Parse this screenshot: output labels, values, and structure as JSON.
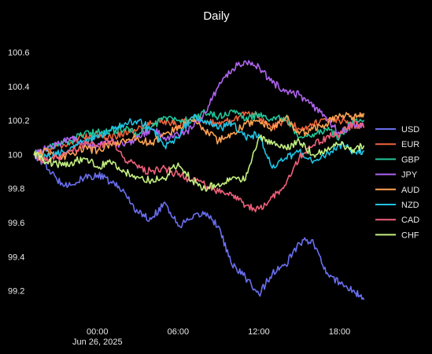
{
  "chart_data": {
    "type": "line",
    "title": "Daily",
    "xlabel": "",
    "ylabel": "",
    "grid": false,
    "legend_position": "right",
    "y_ticks": [
      99.2,
      99.4,
      99.6,
      99.8,
      100,
      100.2,
      100.4,
      100.6
    ],
    "y_tick_labels": [
      "99.2",
      "99.4",
      "99.6",
      "99.8",
      "100",
      "100.2",
      "100.4",
      "100.6"
    ],
    "ylim": [
      99.05,
      100.7
    ],
    "x_tick_labels": [
      "00:00",
      "06:00",
      "12:00",
      "18:00"
    ],
    "x_tick_sublabel": "Jun 26, 2025",
    "x_tick_hours": [
      0,
      6,
      12,
      18
    ],
    "xlim_hours": [
      -4.9,
      19.9
    ],
    "x_hours": [
      -4.7,
      -4.0,
      -3.0,
      -2.0,
      -1.0,
      0.0,
      1.0,
      2.0,
      3.0,
      4.0,
      5.0,
      6.0,
      7.0,
      8.0,
      9.0,
      10.0,
      11.0,
      12.0,
      13.0,
      14.0,
      15.0,
      16.0,
      17.0,
      18.0,
      19.0,
      19.8
    ],
    "series": [
      {
        "name": "USD",
        "color": "#6a6ff0",
        "values": [
          100.0,
          99.95,
          99.85,
          99.82,
          99.86,
          99.88,
          99.84,
          99.78,
          99.66,
          99.62,
          99.72,
          99.58,
          99.62,
          99.66,
          99.58,
          99.35,
          99.28,
          99.18,
          99.3,
          99.35,
          99.48,
          99.5,
          99.3,
          99.25,
          99.2,
          99.15
        ]
      },
      {
        "name": "EUR",
        "color": "#f0643c",
        "values": [
          100.0,
          100.02,
          100.05,
          100.07,
          100.1,
          100.12,
          100.1,
          100.13,
          100.15,
          100.18,
          100.2,
          100.17,
          100.22,
          100.2,
          100.18,
          100.2,
          100.25,
          100.22,
          100.16,
          100.2,
          100.15,
          100.18,
          100.2,
          100.2,
          100.18,
          100.16
        ]
      },
      {
        "name": "GBP",
        "color": "#22c69a",
        "values": [
          100.0,
          100.03,
          100.06,
          100.08,
          100.12,
          100.13,
          100.14,
          100.15,
          100.12,
          100.16,
          100.22,
          100.2,
          100.2,
          100.25,
          100.22,
          100.26,
          100.2,
          100.24,
          100.2,
          100.22,
          100.1,
          100.12,
          100.15,
          100.1,
          100.2,
          100.2
        ]
      },
      {
        "name": "JPY",
        "color": "#b064f0",
        "values": [
          100.0,
          100.03,
          100.06,
          100.1,
          100.06,
          100.05,
          100.08,
          100.05,
          100.1,
          100.15,
          100.1,
          100.12,
          100.15,
          100.25,
          100.4,
          100.5,
          100.55,
          100.52,
          100.42,
          100.38,
          100.35,
          100.28,
          100.22,
          100.12,
          100.18,
          100.16
        ]
      },
      {
        "name": "AUD",
        "color": "#ffa352",
        "values": [
          100.0,
          100.02,
          99.98,
          100.0,
          100.04,
          100.02,
          100.06,
          100.08,
          100.1,
          100.06,
          100.12,
          100.16,
          100.2,
          100.14,
          100.08,
          100.12,
          100.18,
          100.2,
          100.15,
          100.22,
          100.12,
          100.15,
          100.18,
          100.24,
          100.22,
          100.24
        ]
      },
      {
        "name": "NZD",
        "color": "#1ec4e6",
        "values": [
          100.0,
          99.98,
          100.0,
          100.04,
          100.08,
          100.1,
          100.14,
          100.18,
          100.2,
          100.15,
          100.05,
          100.1,
          100.22,
          100.2,
          100.15,
          100.18,
          100.1,
          100.12,
          99.92,
          99.98,
          100.02,
          99.95,
          100.0,
          100.06,
          100.02,
          100.02
        ]
      },
      {
        "name": "CAD",
        "color": "#f0607a",
        "values": [
          100.0,
          99.96,
          99.98,
          100.02,
          100.06,
          100.05,
          100.08,
          99.98,
          99.92,
          99.9,
          99.92,
          99.88,
          99.85,
          99.82,
          99.78,
          99.76,
          99.7,
          99.68,
          99.75,
          99.82,
          99.98,
          100.05,
          100.1,
          100.12,
          100.18,
          100.16
        ]
      },
      {
        "name": "CHF",
        "color": "#c4f080",
        "values": [
          100.0,
          99.97,
          99.94,
          99.95,
          99.98,
          99.93,
          99.95,
          99.9,
          99.87,
          99.85,
          99.86,
          99.95,
          99.85,
          99.8,
          99.83,
          99.86,
          99.85,
          100.1,
          100.06,
          100.04,
          100.08,
          100.0,
          100.02,
          100.06,
          100.03,
          100.05
        ]
      }
    ]
  }
}
